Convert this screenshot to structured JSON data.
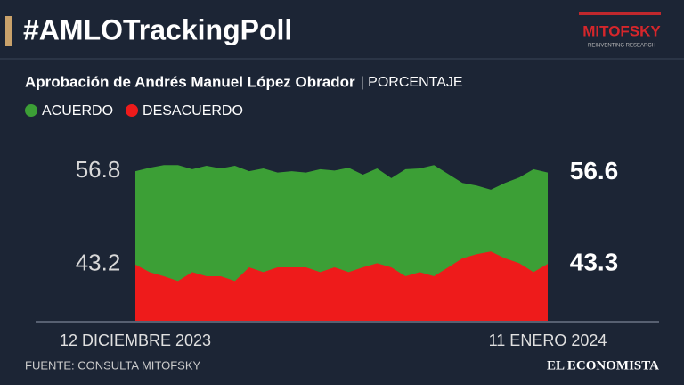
{
  "header": {
    "title": "#AMLOTrackingPoll",
    "logo": "MITOFSKY",
    "logo_tagline": "REINVENTING RESEARCH"
  },
  "chart_data": {
    "type": "area",
    "title": "Aprobación de Andrés Manuel López Obrador",
    "y_label": "| PORCENTAJE",
    "categories": [
      "12 DICIEMBRE 2023",
      null,
      null,
      null,
      null,
      null,
      null,
      null,
      null,
      null,
      null,
      null,
      null,
      null,
      null,
      null,
      null,
      null,
      null,
      null,
      null,
      null,
      null,
      null,
      null,
      null,
      null,
      null,
      null,
      "11 ENERO 2024"
    ],
    "series": [
      {
        "name": "ACUERDO",
        "color": "#3c9f36",
        "values": [
          56.8,
          57.3,
          57.7,
          57.7,
          57.1,
          57.6,
          57.2,
          57.6,
          56.8,
          57.2,
          56.6,
          56.8,
          56.6,
          57.1,
          56.9,
          57.3,
          56.3,
          57.2,
          55.8,
          57.1,
          57.2,
          57.7,
          56.4,
          55.1,
          54.7,
          54.1,
          55.1,
          55.9,
          57.1,
          56.6
        ]
      },
      {
        "name": "DESACUERDO",
        "color": "#ee1b1b",
        "values": [
          43.2,
          42.1,
          41.5,
          40.8,
          42.1,
          41.5,
          41.5,
          40.8,
          42.8,
          42.1,
          42.8,
          42.8,
          42.8,
          42.1,
          42.8,
          42.1,
          42.8,
          43.4,
          42.8,
          41.5,
          42.1,
          41.5,
          42.8,
          44.1,
          44.7,
          45.1,
          44.1,
          43.4,
          42.1,
          43.3
        ]
      }
    ],
    "ylim": [
      35,
      60
    ]
  },
  "footer": {
    "source": "FUENTE: CONSULTA MITOFSKY",
    "publisher": "EL ECONOMISTA"
  }
}
